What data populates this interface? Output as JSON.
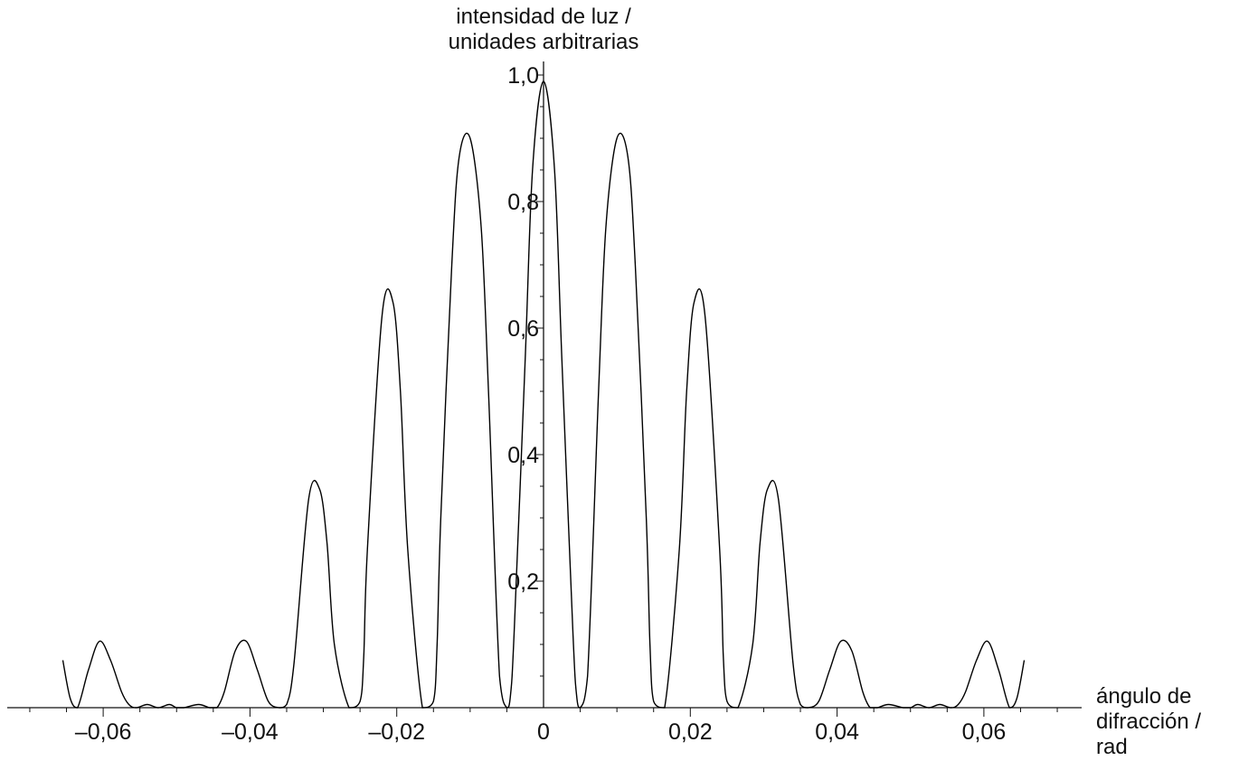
{
  "chart_data": {
    "type": "line",
    "ylabel_lines": [
      "intensidad de luz /",
      "unidades arbitrarias"
    ],
    "xlabel_lines": [
      "ángulo de",
      "difracción /",
      "rad"
    ],
    "x_ticks": [
      "–0,06",
      "–0,04",
      "–0,02",
      "0",
      "0,02",
      "0,04",
      "0,06"
    ],
    "x_tick_values": [
      -0.06,
      -0.04,
      -0.02,
      0,
      0.02,
      0.04,
      0.06
    ],
    "y_ticks": [
      "0,2",
      "0,4",
      "0,6",
      "0,8",
      "1,0"
    ],
    "y_tick_values": [
      0.2,
      0.4,
      0.6,
      0.8,
      1.0
    ],
    "xlim": [
      -0.073,
      0.073
    ],
    "ylim": [
      0,
      1.0
    ],
    "grid": false,
    "series": [
      {
        "x": [
          -0.0655,
          -0.0645,
          -0.0635,
          -0.062,
          -0.0605,
          -0.059,
          -0.0575,
          -0.0565,
          -0.0555,
          -0.054,
          -0.0525,
          -0.051,
          -0.05,
          -0.049,
          -0.047,
          -0.0455,
          -0.0445,
          -0.0435,
          -0.042,
          -0.0405,
          -0.039,
          -0.0375,
          -0.036,
          -0.035,
          -0.034,
          -0.032,
          -0.0305,
          -0.0295,
          -0.0285,
          -0.0265,
          -0.025,
          -0.0245,
          -0.024,
          -0.022,
          -0.0205,
          -0.0195,
          -0.0185,
          -0.0165,
          -0.015,
          -0.0145,
          -0.014,
          -0.0125,
          -0.0115,
          -0.01,
          -0.0085,
          -0.0075,
          -0.006,
          -0.005,
          -0.0045,
          -0.004,
          -0.0025,
          -0.0015,
          0,
          0.0015,
          0.0025,
          0.004,
          0.0045,
          0.005,
          0.006,
          0.0075,
          0.0085,
          0.01,
          0.0115,
          0.0125,
          0.014,
          0.0145,
          0.015,
          0.0165,
          0.0185,
          0.0195,
          0.0205,
          0.022,
          0.024,
          0.0245,
          0.025,
          0.0265,
          0.0285,
          0.0295,
          0.0305,
          0.032,
          0.034,
          0.035,
          0.036,
          0.0375,
          0.039,
          0.0405,
          0.042,
          0.0435,
          0.0445,
          0.0455,
          0.047,
          0.049,
          0.05,
          0.051,
          0.0525,
          0.054,
          0.0555,
          0.0565,
          0.0575,
          0.059,
          0.0605,
          0.062,
          0.0635,
          0.0645,
          0.0655
        ],
        "y": [
          0.075,
          0.015,
          0.0,
          0.06,
          0.105,
          0.075,
          0.025,
          0.005,
          0.0,
          0.005,
          0.0,
          0.005,
          0.0,
          0.0,
          0.005,
          0.0,
          0.0,
          0.025,
          0.09,
          0.105,
          0.06,
          0.01,
          0.0,
          0.005,
          0.07,
          0.33,
          0.345,
          0.26,
          0.1,
          0.0,
          0.01,
          0.08,
          0.25,
          0.62,
          0.64,
          0.5,
          0.25,
          0.0,
          0.01,
          0.1,
          0.3,
          0.7,
          0.87,
          0.9,
          0.76,
          0.5,
          0.05,
          0.0,
          0.02,
          0.12,
          0.55,
          0.85,
          0.99,
          0.85,
          0.55,
          0.12,
          0.02,
          0.0,
          0.05,
          0.5,
          0.76,
          0.9,
          0.87,
          0.7,
          0.3,
          0.1,
          0.01,
          0.0,
          0.25,
          0.5,
          0.64,
          0.62,
          0.25,
          0.08,
          0.01,
          0.0,
          0.1,
          0.26,
          0.345,
          0.33,
          0.07,
          0.005,
          0.0,
          0.01,
          0.06,
          0.105,
          0.09,
          0.025,
          0.0,
          0.0,
          0.005,
          0.0,
          0.0,
          0.005,
          0.0,
          0.005,
          0.0,
          0.005,
          0.025,
          0.075,
          0.105,
          0.06,
          0.0,
          0.015,
          0.075
        ]
      }
    ]
  }
}
